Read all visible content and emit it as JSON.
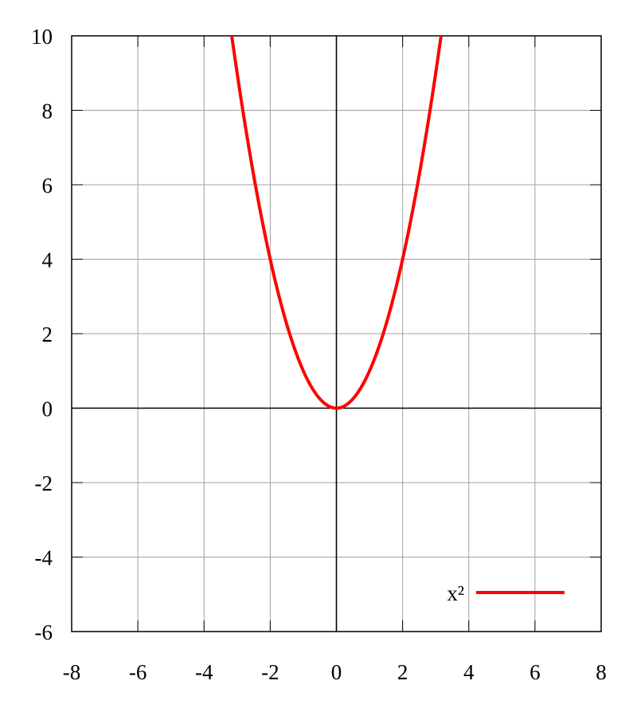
{
  "chart_data": {
    "type": "line",
    "title": "",
    "xlabel": "",
    "ylabel": "",
    "xlim": [
      -8,
      8
    ],
    "ylim": [
      -6,
      10
    ],
    "x_ticks": [
      -8,
      -6,
      -4,
      -2,
      0,
      2,
      4,
      6,
      8
    ],
    "y_ticks": [
      -6,
      -4,
      -2,
      0,
      2,
      4,
      6,
      8,
      10
    ],
    "x_tick_labels": [
      "-8",
      "-6",
      "-4",
      "-2",
      "0",
      "2",
      "4",
      "6",
      "8"
    ],
    "y_tick_labels": [
      "-6",
      "-4",
      "-2",
      "0",
      "2",
      "4",
      "6",
      "8",
      "10"
    ],
    "grid": true,
    "zero_axes": true,
    "legend_position": "bottom-right",
    "series": [
      {
        "name": "x²",
        "function": "x^2",
        "color": "#ff0000",
        "x": [
          -3.16,
          -3,
          -2.5,
          -2,
          -1.5,
          -1,
          -0.5,
          0,
          0.5,
          1,
          1.5,
          2,
          2.5,
          3,
          3.16
        ],
        "y": [
          10,
          9,
          6.25,
          4,
          2.25,
          1,
          0.25,
          0,
          0.25,
          1,
          2.25,
          4,
          6.25,
          9,
          10
        ]
      }
    ]
  }
}
